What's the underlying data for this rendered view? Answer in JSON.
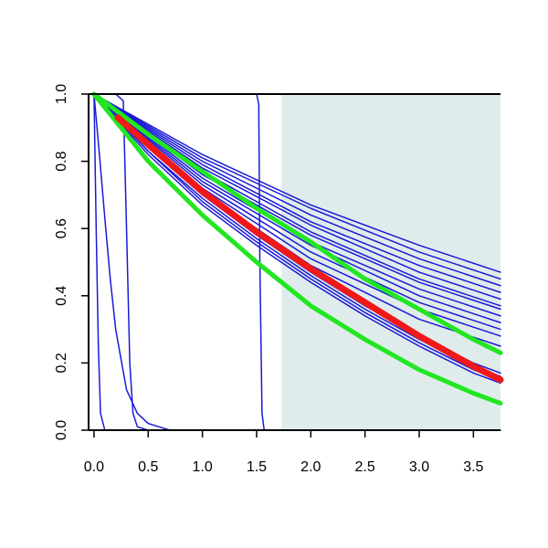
{
  "chart_data": {
    "type": "line",
    "title": "",
    "xlabel": "",
    "ylabel": "",
    "xlim": [
      -0.05,
      3.75
    ],
    "ylim": [
      0.0,
      1.0
    ],
    "x_ticks": [
      0.0,
      0.5,
      1.0,
      1.5,
      2.0,
      2.5,
      3.0,
      3.5
    ],
    "x_tick_labels": [
      "0.0",
      "0.5",
      "1.0",
      "1.5",
      "2.0",
      "2.5",
      "3.0",
      "3.5"
    ],
    "y_ticks": [
      0.0,
      0.2,
      0.4,
      0.6,
      0.8,
      1.0
    ],
    "y_tick_labels": [
      "0.0",
      "0.2",
      "0.4",
      "0.6",
      "0.8",
      "1.0"
    ],
    "grid": false,
    "legend": "none",
    "shaded_region": {
      "x_from": 1.73,
      "x_to": 3.75,
      "color": "#e0ecec"
    },
    "colors": {
      "blue": "#1a1ad6",
      "red": "#f01818",
      "green": "#22e622",
      "axis": "#000000"
    },
    "series": [
      {
        "color": "blue",
        "width": 1.5,
        "x": [
          0,
          0.02,
          0.04,
          0.06,
          0.1
        ],
        "y": [
          1.0,
          0.6,
          0.25,
          0.05,
          0.0
        ]
      },
      {
        "color": "blue",
        "width": 1.5,
        "x": [
          0,
          0.05,
          0.1,
          0.15,
          0.2,
          0.3,
          0.4,
          0.5,
          0.6,
          0.7
        ],
        "y": [
          1.0,
          0.82,
          0.63,
          0.45,
          0.3,
          0.12,
          0.05,
          0.02,
          0.01,
          0.0
        ]
      },
      {
        "color": "blue",
        "width": 1.5,
        "x": [
          0,
          0.2,
          0.27,
          0.3,
          0.33,
          0.36,
          0.4,
          0.5
        ],
        "y": [
          1.0,
          1.0,
          0.98,
          0.6,
          0.2,
          0.05,
          0.01,
          0.0
        ]
      },
      {
        "color": "blue",
        "width": 1.5,
        "x": [
          0,
          1.5,
          1.52,
          1.53,
          1.55,
          1.57
        ],
        "y": [
          1.0,
          1.0,
          0.97,
          0.5,
          0.05,
          0.0
        ]
      },
      {
        "color": "blue",
        "width": 1.5,
        "x": [
          0,
          3.75
        ],
        "y": [
          0.0,
          0.0
        ]
      },
      {
        "color": "blue",
        "width": 1.5,
        "x": [
          0,
          1.0,
          2.0,
          3.0,
          3.75
        ],
        "y": [
          1.0,
          0.82,
          0.67,
          0.55,
          0.47
        ]
      },
      {
        "color": "blue",
        "width": 1.5,
        "x": [
          0,
          1.0,
          2.0,
          3.0,
          3.75
        ],
        "y": [
          1.0,
          0.81,
          0.66,
          0.53,
          0.45
        ]
      },
      {
        "color": "blue",
        "width": 1.5,
        "x": [
          0,
          1.0,
          2.0,
          3.0,
          3.75
        ],
        "y": [
          1.0,
          0.8,
          0.64,
          0.51,
          0.43
        ]
      },
      {
        "color": "blue",
        "width": 1.5,
        "x": [
          0,
          1.0,
          2.0,
          3.0,
          3.75
        ],
        "y": [
          1.0,
          0.79,
          0.62,
          0.49,
          0.41
        ]
      },
      {
        "color": "blue",
        "width": 1.5,
        "x": [
          0,
          1.0,
          2.0,
          3.0,
          3.75
        ],
        "y": [
          1.0,
          0.78,
          0.61,
          0.47,
          0.39
        ]
      },
      {
        "color": "blue",
        "width": 1.5,
        "x": [
          0,
          1.0,
          2.0,
          3.0,
          3.75
        ],
        "y": [
          1.0,
          0.77,
          0.59,
          0.45,
          0.37
        ]
      },
      {
        "color": "blue",
        "width": 1.5,
        "x": [
          0,
          1.0,
          2.0,
          3.0,
          3.75
        ],
        "y": [
          1.0,
          0.76,
          0.58,
          0.44,
          0.36
        ]
      },
      {
        "color": "blue",
        "width": 1.5,
        "x": [
          0,
          1.0,
          2.0,
          3.0,
          3.75
        ],
        "y": [
          1.0,
          0.75,
          0.56,
          0.42,
          0.34
        ]
      },
      {
        "color": "blue",
        "width": 1.5,
        "x": [
          0,
          1.0,
          2.0,
          3.0,
          3.75
        ],
        "y": [
          1.0,
          0.74,
          0.55,
          0.4,
          0.32
        ]
      },
      {
        "color": "blue",
        "width": 1.5,
        "x": [
          0,
          1.0,
          2.0,
          3.0,
          3.75
        ],
        "y": [
          1.0,
          0.73,
          0.53,
          0.38,
          0.3
        ]
      },
      {
        "color": "blue",
        "width": 1.5,
        "x": [
          0,
          1.0,
          2.0,
          3.0,
          3.75
        ],
        "y": [
          1.0,
          0.72,
          0.51,
          0.36,
          0.28
        ]
      },
      {
        "color": "blue",
        "width": 1.5,
        "x": [
          0,
          1.0,
          2.0,
          3.0,
          3.75
        ],
        "y": [
          1.0,
          0.71,
          0.49,
          0.33,
          0.25
        ]
      },
      {
        "color": "blue",
        "width": 1.5,
        "x": [
          0,
          0.5,
          1.0,
          1.5,
          2.0,
          2.5,
          3.0,
          3.5,
          3.75
        ],
        "y": [
          1.0,
          0.84,
          0.7,
          0.58,
          0.47,
          0.37,
          0.28,
          0.2,
          0.17
        ]
      },
      {
        "color": "blue",
        "width": 1.5,
        "x": [
          0,
          0.5,
          1.0,
          1.5,
          2.0,
          2.5,
          3.0,
          3.5,
          3.75
        ],
        "y": [
          1.0,
          0.83,
          0.69,
          0.57,
          0.46,
          0.36,
          0.27,
          0.19,
          0.16
        ]
      },
      {
        "color": "blue",
        "width": 1.5,
        "x": [
          0,
          0.5,
          1.0,
          1.5,
          2.0,
          2.5,
          3.0,
          3.5,
          3.75
        ],
        "y": [
          1.0,
          0.83,
          0.68,
          0.56,
          0.45,
          0.35,
          0.26,
          0.18,
          0.15
        ]
      },
      {
        "color": "blue",
        "width": 1.5,
        "x": [
          0,
          0.5,
          1.0,
          1.5,
          2.0,
          2.5,
          3.0,
          3.5,
          3.75
        ],
        "y": [
          1.0,
          0.82,
          0.67,
          0.55,
          0.44,
          0.34,
          0.25,
          0.17,
          0.14
        ]
      },
      {
        "color": "green",
        "width": 5,
        "x": [
          0,
          0.5,
          1.0,
          1.5,
          2.0,
          2.5,
          3.0,
          3.5,
          3.75
        ],
        "y": [
          1.0,
          0.88,
          0.77,
          0.66,
          0.56,
          0.45,
          0.36,
          0.27,
          0.23
        ]
      },
      {
        "color": "green",
        "width": 5,
        "x": [
          0,
          0.5,
          1.0,
          1.5,
          2.0,
          2.5,
          3.0,
          3.5,
          3.75
        ],
        "y": [
          1.0,
          0.8,
          0.64,
          0.5,
          0.37,
          0.27,
          0.18,
          0.11,
          0.08
        ]
      },
      {
        "color": "red",
        "width": 7,
        "x": [
          0.22,
          0.5,
          1.0,
          1.5,
          2.0,
          2.5,
          3.0,
          3.5,
          3.75
        ],
        "y": [
          0.93,
          0.85,
          0.71,
          0.59,
          0.48,
          0.38,
          0.28,
          0.19,
          0.15
        ]
      }
    ]
  }
}
